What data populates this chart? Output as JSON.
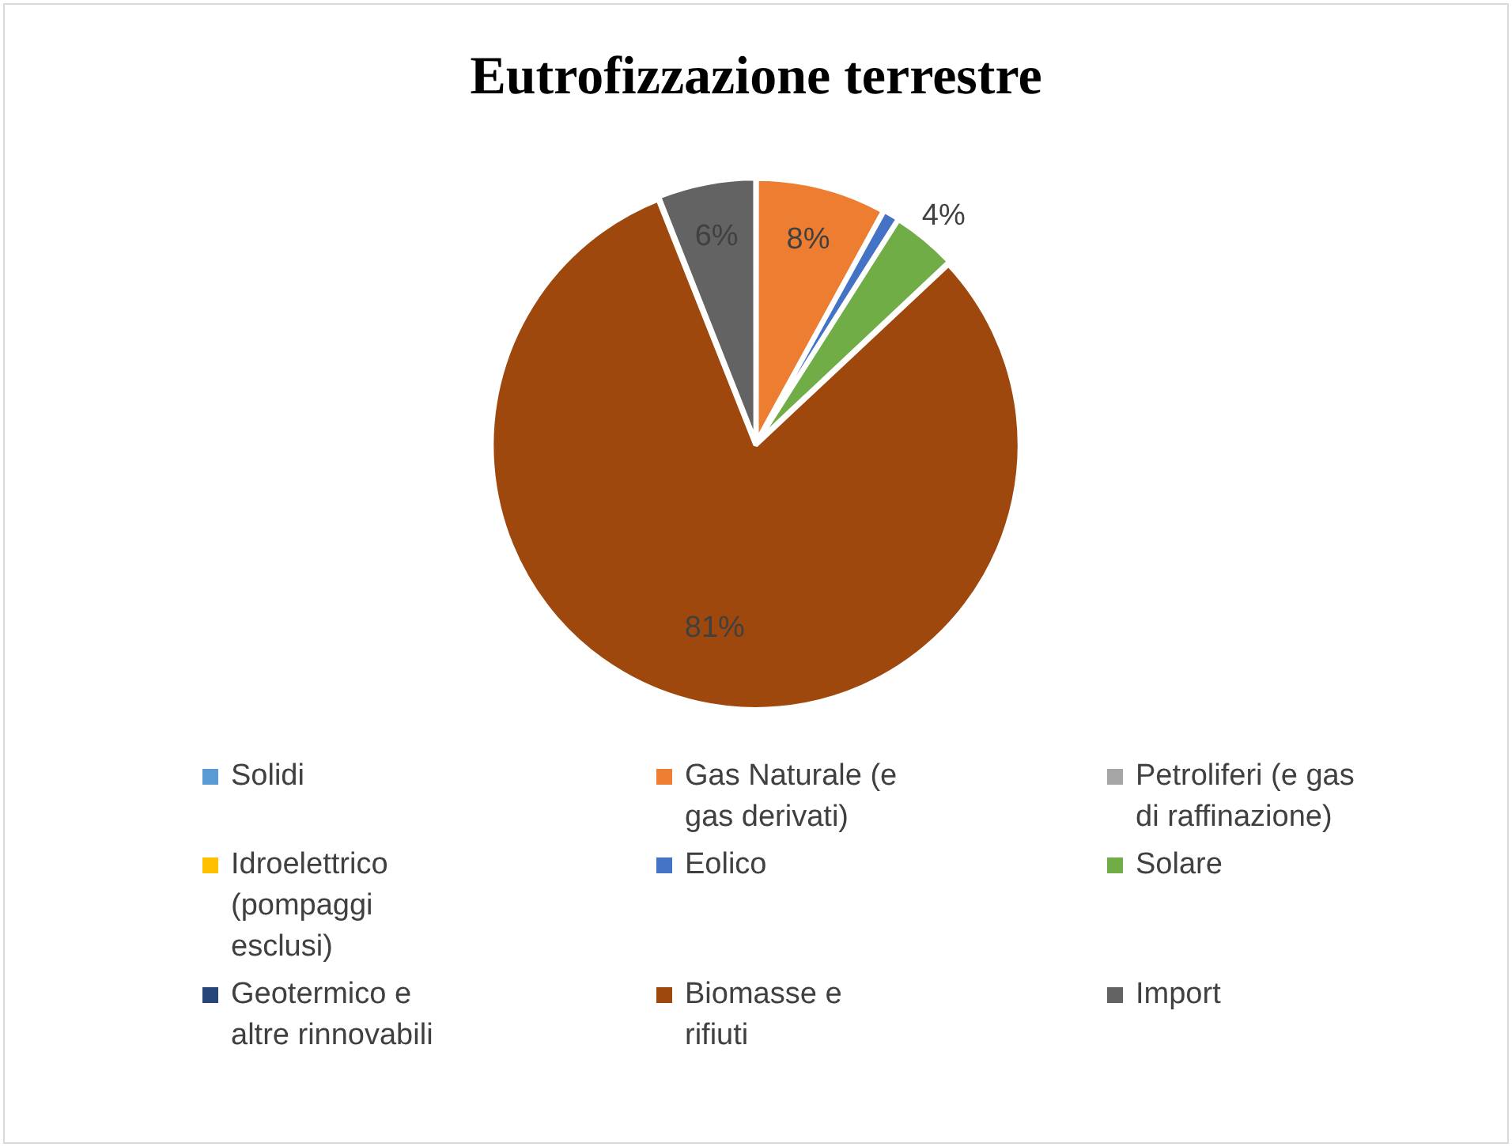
{
  "chart_data": {
    "type": "pie",
    "title": "Eutrofizzazione terrestre",
    "categories": [
      "Solidi",
      "Gas Naturale (e gas derivati)",
      "Petroliferi (e gas di raffinazione)",
      "Idroelettrico (pompaggi esclusi)",
      "Eolico",
      "Solare",
      "Geotermico e altre rinnovabili",
      "Biomasse e rifiuti",
      "Import"
    ],
    "values": [
      0,
      8,
      0,
      0,
      1,
      4,
      0,
      81,
      6
    ],
    "value_labels": [
      null,
      "8%",
      null,
      null,
      null,
      "4%",
      null,
      "81%",
      "6%"
    ],
    "colors": [
      "#5b9bd5",
      "#ed7d31",
      "#a5a5a5",
      "#ffc000",
      "#4472c4",
      "#70ad47",
      "#264478",
      "#9e480e",
      "#636363"
    ],
    "legend": "bottom"
  }
}
